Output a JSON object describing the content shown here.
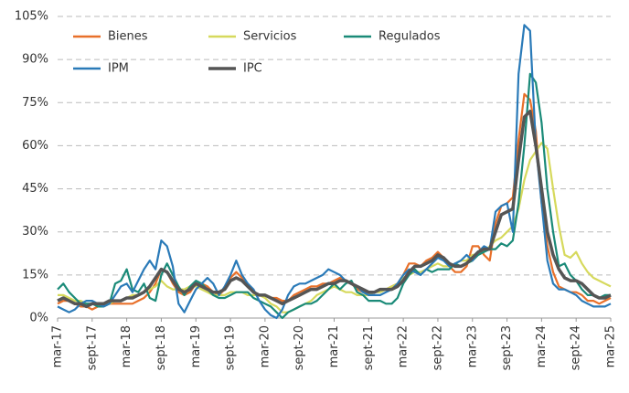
{
  "chart_data": {
    "type": "line",
    "categories": [
      "mar-17",
      null,
      null,
      null,
      null,
      null,
      "sept-17",
      null,
      null,
      null,
      null,
      null,
      "mar-18",
      null,
      null,
      null,
      null,
      null,
      "sept-18",
      null,
      null,
      null,
      null,
      null,
      "mar-19",
      null,
      null,
      null,
      null,
      null,
      "sept-19",
      null,
      null,
      null,
      null,
      null,
      "mar-20",
      null,
      null,
      null,
      null,
      null,
      "sept-20",
      null,
      null,
      null,
      null,
      null,
      "mar-21",
      null,
      null,
      null,
      null,
      null,
      "sept-21",
      null,
      null,
      null,
      null,
      null,
      "mar-22",
      null,
      null,
      null,
      null,
      null,
      "sept-22",
      null,
      null,
      null,
      null,
      null,
      "mar-23",
      null,
      null,
      null,
      null,
      null,
      "sept-23",
      null,
      null,
      null,
      null,
      null,
      "mar-24",
      null,
      null,
      null,
      null,
      null,
      "sept-24",
      null,
      null,
      null,
      null,
      null,
      "mar-25"
    ],
    "series": [
      {
        "name": "Bienes",
        "color": "#e8702a",
        "values": [
          5,
          6,
          6,
          5,
          4,
          4,
          3,
          4,
          5,
          5,
          5,
          5,
          5,
          5,
          6,
          7,
          9,
          12,
          17,
          16,
          12,
          9,
          8,
          9,
          12,
          12,
          11,
          9,
          8,
          10,
          14,
          16,
          14,
          11,
          9,
          8,
          8,
          7,
          7,
          6,
          6,
          8,
          9,
          10,
          11,
          11,
          12,
          12,
          13,
          14,
          13,
          12,
          10,
          9,
          9,
          9,
          10,
          10,
          11,
          12,
          15,
          19,
          19,
          18,
          20,
          21,
          23,
          21,
          18,
          16,
          16,
          18,
          25,
          25,
          22,
          20,
          33,
          39,
          40,
          42,
          62,
          78,
          76,
          65,
          40,
          25,
          16,
          11,
          10,
          9,
          9,
          8,
          6,
          6,
          5,
          6,
          7
        ]
      },
      {
        "name": "Servicios",
        "color": "#d6d95c",
        "values": [
          8,
          8,
          7,
          6,
          6,
          5,
          5,
          5,
          5,
          5,
          6,
          6,
          7,
          8,
          8,
          9,
          10,
          11,
          13,
          11,
          10,
          10,
          10,
          11,
          11,
          10,
          9,
          8,
          8,
          8,
          9,
          9,
          9,
          8,
          8,
          8,
          7,
          5,
          4,
          2,
          2,
          3,
          4,
          5,
          6,
          8,
          9,
          10,
          11,
          10,
          9,
          9,
          8,
          8,
          8,
          9,
          9,
          10,
          11,
          12,
          14,
          15,
          16,
          16,
          17,
          18,
          19,
          18,
          18,
          19,
          20,
          20,
          22,
          22,
          23,
          25,
          27,
          28,
          30,
          32,
          38,
          48,
          55,
          58,
          61,
          59,
          45,
          32,
          22,
          21,
          23,
          19,
          16,
          14,
          13,
          12,
          11
        ]
      },
      {
        "name": "Regulados",
        "color": "#1a8a78",
        "values": [
          10,
          12,
          9,
          7,
          5,
          5,
          5,
          4,
          4,
          5,
          12,
          13,
          17,
          10,
          9,
          12,
          7,
          6,
          15,
          19,
          15,
          11,
          8,
          11,
          13,
          12,
          10,
          8,
          7,
          7,
          8,
          9,
          9,
          9,
          7,
          6,
          5,
          4,
          2,
          0,
          2,
          3,
          4,
          5,
          5,
          6,
          8,
          10,
          12,
          10,
          12,
          13,
          9,
          8,
          6,
          6,
          6,
          5,
          5,
          7,
          12,
          15,
          17,
          15,
          17,
          16,
          17,
          17,
          17,
          19,
          18,
          19,
          20,
          22,
          23,
          24,
          24,
          26,
          25,
          27,
          40,
          60,
          85,
          82,
          68,
          45,
          30,
          18,
          19,
          15,
          13,
          10,
          8,
          8,
          7,
          8,
          8
        ]
      },
      {
        "name": "IPM",
        "color": "#2a7ab8",
        "values": [
          4,
          3,
          2,
          3,
          5,
          6,
          6,
          5,
          4,
          5,
          8,
          11,
          12,
          9,
          13,
          17,
          20,
          17,
          27,
          25,
          18,
          5,
          2,
          6,
          10,
          12,
          14,
          12,
          8,
          11,
          15,
          20,
          15,
          12,
          10,
          6,
          3,
          1,
          0,
          3,
          8,
          11,
          12,
          12,
          13,
          14,
          15,
          17,
          16,
          15,
          13,
          12,
          11,
          9,
          8,
          8,
          8,
          9,
          10,
          12,
          15,
          17,
          16,
          15,
          17,
          19,
          21,
          20,
          18,
          19,
          20,
          22,
          20,
          23,
          25,
          24,
          37,
          39,
          40,
          30,
          85,
          102,
          100,
          60,
          40,
          20,
          12,
          10,
          10,
          9,
          8,
          6,
          5,
          4,
          4,
          4,
          5
        ]
      },
      {
        "name": "IPC",
        "color": "#555555",
        "values": [
          6,
          7,
          6,
          5,
          5,
          4,
          5,
          5,
          5,
          6,
          6,
          6,
          7,
          7,
          8,
          9,
          11,
          14,
          17,
          16,
          13,
          10,
          9,
          10,
          12,
          11,
          10,
          9,
          9,
          10,
          13,
          14,
          13,
          11,
          9,
          8,
          8,
          7,
          6,
          5,
          6,
          7,
          8,
          9,
          10,
          10,
          11,
          12,
          12,
          13,
          13,
          12,
          11,
          10,
          9,
          9,
          10,
          10,
          10,
          11,
          13,
          16,
          18,
          18,
          19,
          20,
          22,
          21,
          19,
          18,
          18,
          19,
          21,
          23,
          24,
          24,
          30,
          36,
          37,
          38,
          55,
          70,
          72,
          60,
          45,
          30,
          22,
          17,
          14,
          13,
          13,
          12,
          10,
          8,
          7,
          7,
          8
        ]
      }
    ],
    "ylim": [
      0,
      105
    ],
    "yticks": [
      {
        "value": 0,
        "label": "0%"
      },
      {
        "value": 15,
        "label": "15%"
      },
      {
        "value": 30,
        "label": "30%"
      },
      {
        "value": 45,
        "label": "45%"
      },
      {
        "value": 60,
        "label": "60%"
      },
      {
        "value": 75,
        "label": "75%"
      },
      {
        "value": 90,
        "label": "90%"
      },
      {
        "value": 105,
        "label": "105%"
      }
    ],
    "grid": true,
    "legend": "top-left"
  }
}
